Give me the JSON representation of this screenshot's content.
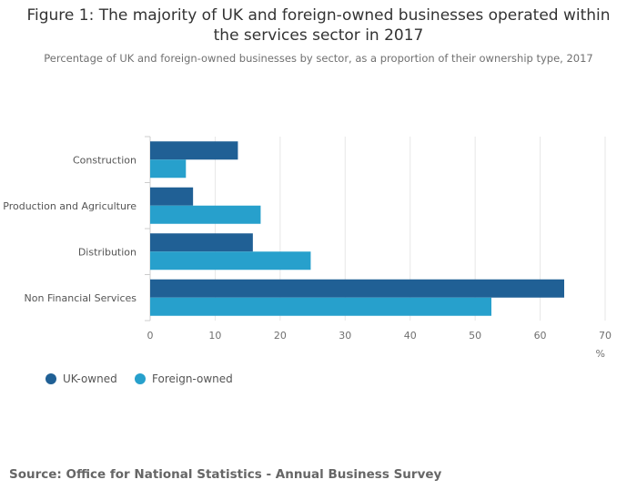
{
  "title_lines": [
    "Figure 1: The majority of UK and foreign-owned businesses operated within",
    "the services sector in 2017"
  ],
  "subtitle": "Percentage of UK and foreign-owned businesses by sector, as a proportion of their ownership type, 2017",
  "source": "Source: Office for National Statistics - Annual Business Survey",
  "colors": {
    "uk": "#206095",
    "foreign": "#27a0cc",
    "grid": "#e6e6e6",
    "axis": "#cccccc"
  },
  "chart_data": {
    "type": "bar",
    "orientation": "horizontal",
    "categories": [
      "Construction",
      "Production and Agriculture",
      "Distribution",
      "Non Financial Services"
    ],
    "series": [
      {
        "name": "UK-owned",
        "values": [
          13.5,
          6.6,
          15.8,
          63.7
        ]
      },
      {
        "name": "Foreign-owned",
        "values": [
          5.5,
          17.0,
          24.7,
          52.5
        ]
      }
    ],
    "xlim": [
      0,
      70
    ],
    "xticks": [
      "0",
      "10",
      "20",
      "30",
      "40",
      "50",
      "60",
      "70"
    ],
    "xlabel": "%",
    "ylabel": "",
    "grid": true,
    "legend_position": "bottom-left"
  }
}
